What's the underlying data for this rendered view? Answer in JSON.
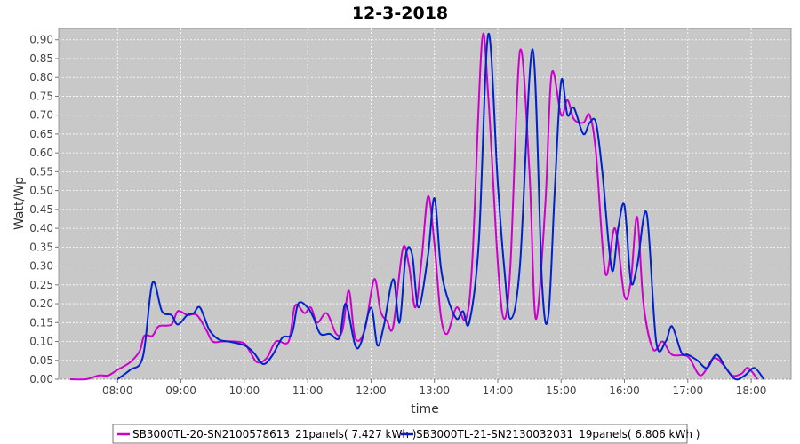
{
  "chart_data": {
    "type": "line",
    "title": "12-3-2018",
    "xlabel": "time",
    "ylabel": "Watt/Wp",
    "xlim": [
      7.07,
      18.63
    ],
    "ylim": [
      0,
      0.93
    ],
    "x_ticks": [
      "08:00",
      "09:00",
      "10:00",
      "11:00",
      "12:00",
      "13:00",
      "14:00",
      "15:00",
      "16:00",
      "17:00",
      "18:00"
    ],
    "y_ticks": [
      "0.00",
      "0.05",
      "0.10",
      "0.15",
      "0.20",
      "0.25",
      "0.30",
      "0.35",
      "0.40",
      "0.45",
      "0.50",
      "0.55",
      "0.60",
      "0.65",
      "0.70",
      "0.75",
      "0.80",
      "0.85",
      "0.90"
    ],
    "grid": true,
    "legend_position": "bottom",
    "series": [
      {
        "name": "SB3000TL-20-SN2100578613_21panels( 7.427 kWh )",
        "color": "#cc00cc",
        "points": [
          [
            7.25,
            0.0
          ],
          [
            7.5,
            0.0
          ],
          [
            7.7,
            0.01
          ],
          [
            7.85,
            0.01
          ],
          [
            8.0,
            0.025
          ],
          [
            8.2,
            0.045
          ],
          [
            8.35,
            0.075
          ],
          [
            8.42,
            0.115
          ],
          [
            8.55,
            0.115
          ],
          [
            8.65,
            0.14
          ],
          [
            8.85,
            0.145
          ],
          [
            8.95,
            0.18
          ],
          [
            9.1,
            0.17
          ],
          [
            9.25,
            0.17
          ],
          [
            9.4,
            0.13
          ],
          [
            9.5,
            0.1
          ],
          [
            9.65,
            0.1
          ],
          [
            9.85,
            0.1
          ],
          [
            10.0,
            0.095
          ],
          [
            10.1,
            0.07
          ],
          [
            10.2,
            0.045
          ],
          [
            10.35,
            0.055
          ],
          [
            10.5,
            0.1
          ],
          [
            10.7,
            0.1
          ],
          [
            10.8,
            0.195
          ],
          [
            10.95,
            0.175
          ],
          [
            11.05,
            0.19
          ],
          [
            11.15,
            0.15
          ],
          [
            11.3,
            0.175
          ],
          [
            11.45,
            0.12
          ],
          [
            11.55,
            0.13
          ],
          [
            11.65,
            0.235
          ],
          [
            11.75,
            0.11
          ],
          [
            11.9,
            0.13
          ],
          [
            12.05,
            0.265
          ],
          [
            12.15,
            0.18
          ],
          [
            12.25,
            0.155
          ],
          [
            12.35,
            0.14
          ],
          [
            12.5,
            0.345
          ],
          [
            12.6,
            0.3
          ],
          [
            12.7,
            0.19
          ],
          [
            12.8,
            0.32
          ],
          [
            12.9,
            0.485
          ],
          [
            13.0,
            0.36
          ],
          [
            13.1,
            0.17
          ],
          [
            13.2,
            0.12
          ],
          [
            13.35,
            0.19
          ],
          [
            13.5,
            0.16
          ],
          [
            13.6,
            0.32
          ],
          [
            13.75,
            0.895
          ],
          [
            13.85,
            0.75
          ],
          [
            14.0,
            0.31
          ],
          [
            14.1,
            0.16
          ],
          [
            14.2,
            0.3
          ],
          [
            14.35,
            0.87
          ],
          [
            14.5,
            0.55
          ],
          [
            14.6,
            0.16
          ],
          [
            14.75,
            0.46
          ],
          [
            14.85,
            0.81
          ],
          [
            15.0,
            0.7
          ],
          [
            15.1,
            0.74
          ],
          [
            15.2,
            0.69
          ],
          [
            15.35,
            0.68
          ],
          [
            15.45,
            0.7
          ],
          [
            15.55,
            0.6
          ],
          [
            15.7,
            0.28
          ],
          [
            15.85,
            0.4
          ],
          [
            16.0,
            0.22
          ],
          [
            16.1,
            0.26
          ],
          [
            16.2,
            0.43
          ],
          [
            16.3,
            0.2
          ],
          [
            16.45,
            0.08
          ],
          [
            16.6,
            0.1
          ],
          [
            16.75,
            0.065
          ],
          [
            17.0,
            0.06
          ],
          [
            17.2,
            0.01
          ],
          [
            17.4,
            0.055
          ],
          [
            17.55,
            0.04
          ],
          [
            17.7,
            0.01
          ],
          [
            17.85,
            0.015
          ],
          [
            17.95,
            0.03
          ],
          [
            18.1,
            0.0
          ]
        ]
      },
      {
        "name": "SB3000TL-21-SN2130032031_19panels( 6.806 kWh )",
        "color": "#0022cc",
        "points": [
          [
            8.0,
            0.0
          ],
          [
            8.2,
            0.025
          ],
          [
            8.4,
            0.06
          ],
          [
            8.55,
            0.255
          ],
          [
            8.7,
            0.18
          ],
          [
            8.85,
            0.17
          ],
          [
            8.95,
            0.145
          ],
          [
            9.1,
            0.17
          ],
          [
            9.2,
            0.175
          ],
          [
            9.3,
            0.19
          ],
          [
            9.45,
            0.13
          ],
          [
            9.6,
            0.105
          ],
          [
            9.75,
            0.1
          ],
          [
            10.0,
            0.09
          ],
          [
            10.15,
            0.07
          ],
          [
            10.3,
            0.04
          ],
          [
            10.45,
            0.065
          ],
          [
            10.6,
            0.11
          ],
          [
            10.75,
            0.12
          ],
          [
            10.85,
            0.2
          ],
          [
            11.0,
            0.19
          ],
          [
            11.1,
            0.16
          ],
          [
            11.2,
            0.12
          ],
          [
            11.35,
            0.12
          ],
          [
            11.5,
            0.11
          ],
          [
            11.6,
            0.2
          ],
          [
            11.75,
            0.09
          ],
          [
            11.85,
            0.1
          ],
          [
            12.0,
            0.19
          ],
          [
            12.1,
            0.09
          ],
          [
            12.2,
            0.14
          ],
          [
            12.35,
            0.265
          ],
          [
            12.45,
            0.15
          ],
          [
            12.55,
            0.33
          ],
          [
            12.65,
            0.33
          ],
          [
            12.75,
            0.19
          ],
          [
            12.9,
            0.33
          ],
          [
            13.0,
            0.48
          ],
          [
            13.1,
            0.3
          ],
          [
            13.2,
            0.22
          ],
          [
            13.35,
            0.16
          ],
          [
            13.45,
            0.18
          ],
          [
            13.55,
            0.15
          ],
          [
            13.7,
            0.36
          ],
          [
            13.85,
            0.915
          ],
          [
            14.0,
            0.52
          ],
          [
            14.1,
            0.3
          ],
          [
            14.2,
            0.16
          ],
          [
            14.35,
            0.3
          ],
          [
            14.55,
            0.875
          ],
          [
            14.7,
            0.25
          ],
          [
            14.8,
            0.17
          ],
          [
            14.9,
            0.5
          ],
          [
            15.0,
            0.79
          ],
          [
            15.1,
            0.7
          ],
          [
            15.2,
            0.72
          ],
          [
            15.35,
            0.65
          ],
          [
            15.45,
            0.68
          ],
          [
            15.55,
            0.68
          ],
          [
            15.65,
            0.55
          ],
          [
            15.8,
            0.29
          ],
          [
            15.9,
            0.4
          ],
          [
            16.0,
            0.46
          ],
          [
            16.1,
            0.26
          ],
          [
            16.2,
            0.3
          ],
          [
            16.35,
            0.44
          ],
          [
            16.5,
            0.1
          ],
          [
            16.65,
            0.1
          ],
          [
            16.75,
            0.14
          ],
          [
            16.9,
            0.07
          ],
          [
            17.0,
            0.065
          ],
          [
            17.15,
            0.05
          ],
          [
            17.3,
            0.03
          ],
          [
            17.45,
            0.065
          ],
          [
            17.6,
            0.03
          ],
          [
            17.75,
            0.0
          ],
          [
            17.9,
            0.01
          ],
          [
            18.05,
            0.03
          ],
          [
            18.2,
            0.0
          ]
        ]
      }
    ]
  }
}
